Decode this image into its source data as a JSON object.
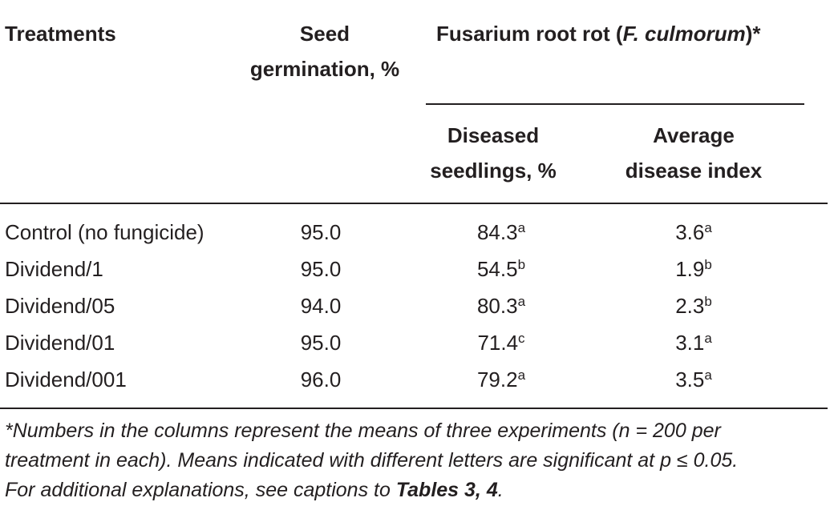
{
  "headers": {
    "treatments": "Treatments",
    "seed_line1": "Seed",
    "seed_line2": "germination, %",
    "group_prefix": "Fusarium root rot (",
    "group_italic": "F. culmorum",
    "group_suffix": ")*",
    "diseased_line1": "Diseased",
    "diseased_line2": "seedlings, %",
    "index_line1": "Average",
    "index_line2": "disease index"
  },
  "rows": [
    {
      "treatment": "Control (no fungicide)",
      "germination": "95.0",
      "diseased": "84.3",
      "diseased_sup": "a",
      "index": "3.6",
      "index_sup": "a"
    },
    {
      "treatment": "Dividend/1",
      "germination": "95.0",
      "diseased": "54.5",
      "diseased_sup": "b",
      "index": "1.9",
      "index_sup": "b"
    },
    {
      "treatment": "Dividend/05",
      "germination": "94.0",
      "diseased": "80.3",
      "diseased_sup": "a",
      "index": "2.3",
      "index_sup": "b"
    },
    {
      "treatment": "Dividend/01",
      "germination": "95.0",
      "diseased": "71.4",
      "diseased_sup": "c",
      "index": "3.1",
      "index_sup": "a"
    },
    {
      "treatment": "Dividend/001",
      "germination": "96.0",
      "diseased": "79.2",
      "diseased_sup": "a",
      "index": "3.5",
      "index_sup": "a"
    }
  ],
  "footnote": {
    "line1": "*Numbers in the columns represent the means of three experiments (n = 200 per",
    "line2": "treatment in each). Means indicated with different letters are significant at p ≤ 0.05.",
    "line3_prefix": "For additional explanations, see captions to ",
    "line3_bold": "Tables 3, 4",
    "line3_suffix": "."
  }
}
